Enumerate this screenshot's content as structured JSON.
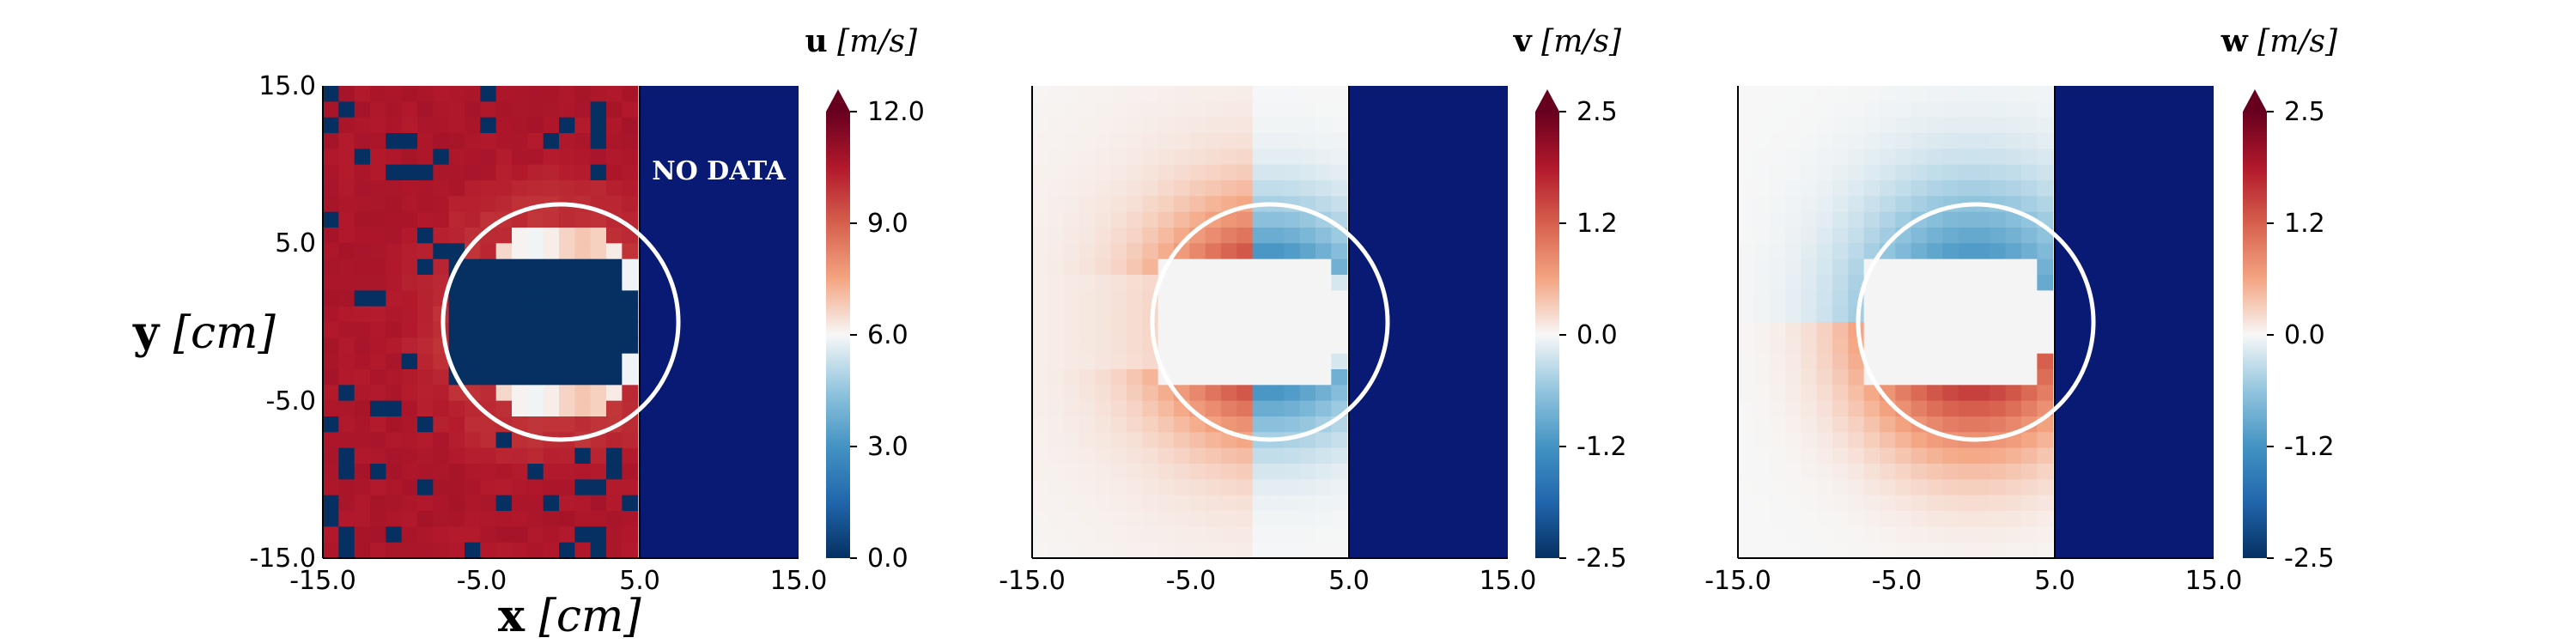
{
  "chart_data": [
    {
      "type": "heatmap",
      "id": "u",
      "colorbar": {
        "symbol": "u",
        "unit": "[m/s]",
        "ticks": [
          "12.0",
          "9.0",
          "6.0",
          "3.0",
          "0.0"
        ],
        "range": [
          0,
          12
        ],
        "colormap": "RdBu_r"
      },
      "xticks": [
        "-15.0",
        "-5.0",
        "5.0",
        "15.0"
      ],
      "yticks": [
        "15.0",
        "5.0",
        "-5.0",
        "-15.0"
      ],
      "xlabel": {
        "symbol": "x",
        "unit": "[cm]"
      },
      "ylabel": {
        "symbol": "y",
        "unit": "[cm]"
      },
      "xlim": [
        -15,
        15
      ],
      "ylim": [
        -15,
        15
      ],
      "data_xlim": [
        -15,
        5
      ],
      "no_data_label": "NO DATA",
      "no_data_color": "#081a73",
      "circle": {
        "center": [
          0,
          0
        ],
        "radius": 7.5
      }
    },
    {
      "type": "heatmap",
      "id": "v",
      "colorbar": {
        "symbol": "v",
        "unit": "[m/s]",
        "ticks": [
          "2.5",
          "1.2",
          "0.0",
          "-1.2",
          "-2.5"
        ],
        "range": [
          -2.5,
          2.5
        ],
        "colormap": "RdBu_r"
      },
      "xticks": [
        "-15.0",
        "-5.0",
        "5.0",
        "15.0"
      ],
      "xlim": [
        -15,
        15
      ],
      "ylim": [
        -15,
        15
      ],
      "data_xlim": [
        -15,
        5
      ],
      "no_data_color": "#081a73",
      "circle": {
        "center": [
          0,
          0
        ],
        "radius": 7.5
      }
    },
    {
      "type": "heatmap",
      "id": "w",
      "colorbar": {
        "symbol": "w",
        "unit": "[m/s]",
        "ticks": [
          "2.5",
          "1.2",
          "0.0",
          "-1.2",
          "-2.5"
        ],
        "range": [
          -2.5,
          2.5
        ],
        "colormap": "RdBu_r"
      },
      "xticks": [
        "-15.0",
        "-5.0",
        "5.0",
        "15.0"
      ],
      "xlim": [
        -15,
        15
      ],
      "ylim": [
        -15,
        15
      ],
      "data_xlim": [
        -15,
        5
      ],
      "no_data_color": "#081a73",
      "circle": {
        "center": [
          0,
          0
        ],
        "radius": 7.5
      }
    }
  ]
}
